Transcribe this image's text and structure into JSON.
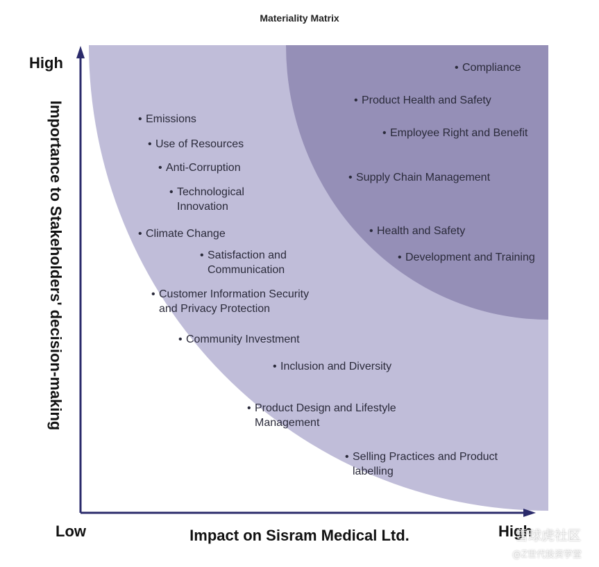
{
  "title": "Materiality Matrix",
  "y_axis": {
    "label": "Importance to Stakeholders' decision-making",
    "high": "High"
  },
  "x_axis": {
    "label": "Impact on Sisram Medical Ltd.",
    "low": "Low",
    "high": "High"
  },
  "colors": {
    "outer_zone": "#c0bdd9",
    "inner_zone": "#958fb7",
    "axis": "#2b2b6b",
    "text": "#2a2a3a"
  },
  "items": [
    {
      "text": "Compliance"
    },
    {
      "text": "Product Health and Safety"
    },
    {
      "text": "Employee Right and Benefit"
    },
    {
      "text": "Supply Chain Management"
    },
    {
      "text": "Health and Safety"
    },
    {
      "text": "Development and Training"
    },
    {
      "text": "Emissions"
    },
    {
      "text": "Use of Resources"
    },
    {
      "text": "Anti-Corruption"
    },
    {
      "text": "Technological\nInnovation"
    },
    {
      "text": "Climate Change"
    },
    {
      "text": "Satisfaction and\nCommunication"
    },
    {
      "text": "Customer Information Security\nand Privacy Protection"
    },
    {
      "text": "Community Investment"
    },
    {
      "text": "Inclusion and Diversity"
    },
    {
      "text": "Product Design and Lifestyle\nManagement"
    },
    {
      "text": "Selling Practices and Product\nlabelling"
    }
  ],
  "watermark": {
    "line1": "雪球虎社区",
    "line2": "@Z世代投资学堂"
  }
}
